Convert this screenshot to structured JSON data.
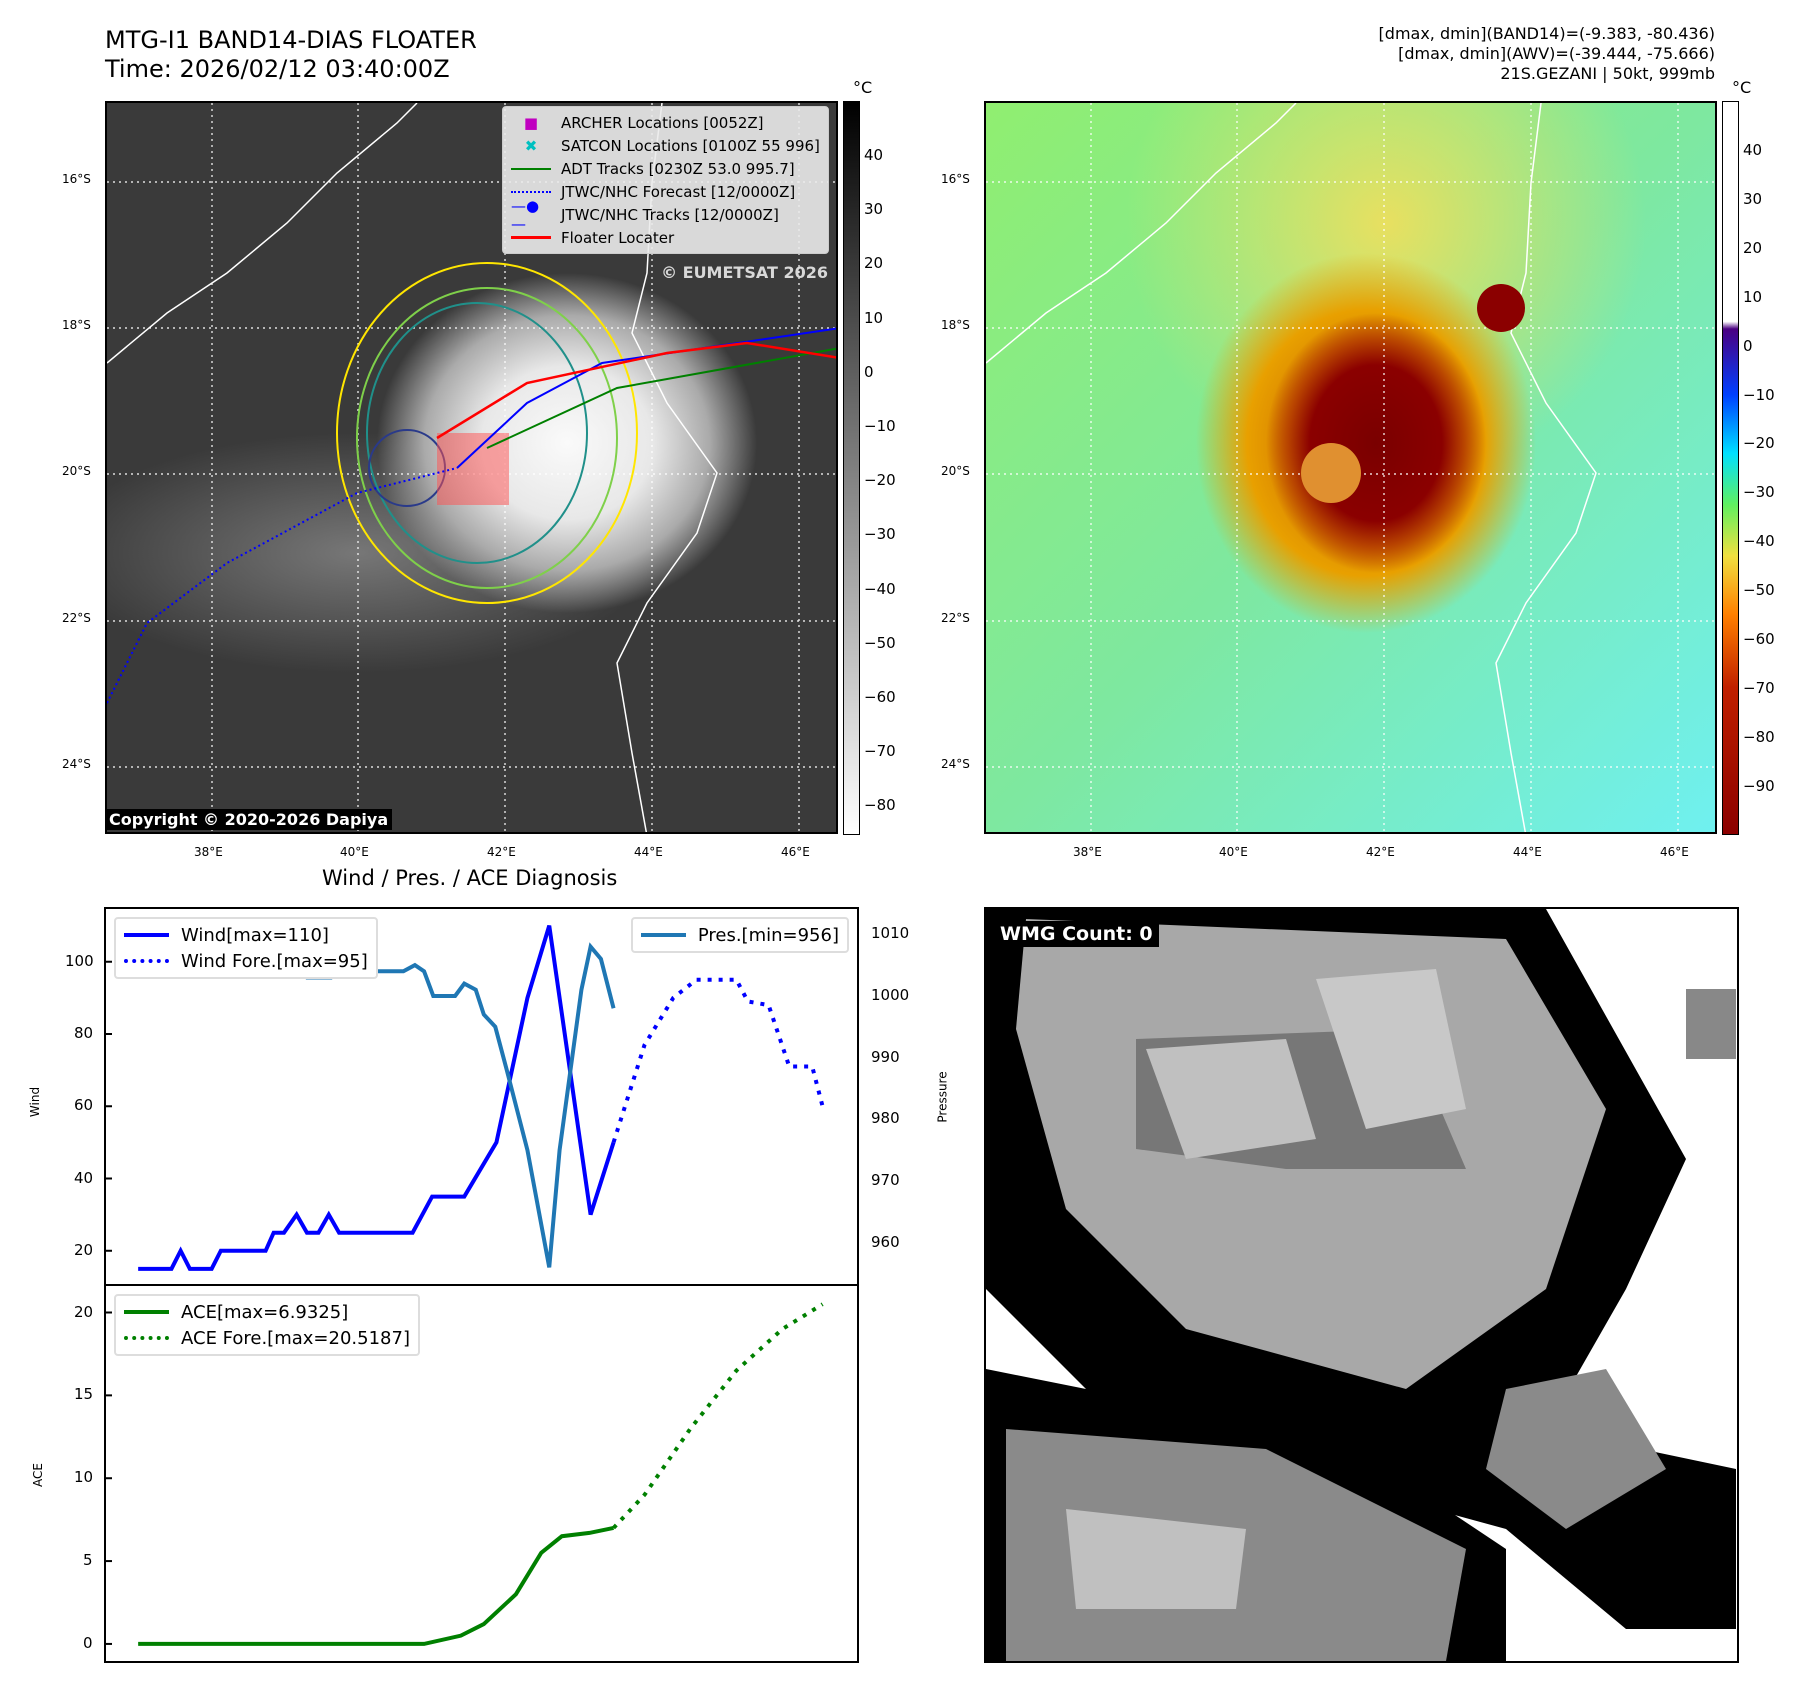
{
  "header": {
    "title": "MTG-I1 BAND14-DIAS FLOATER",
    "time": "Time: 2026/02/12 03:40:00Z",
    "stats1": "[dmax, dmin](BAND14)=(-9.383, -80.436)",
    "stats2": "[dmax, dmin](AWV)=(-39.444, -75.666)",
    "storm": "21S.GEZANI | 50kt, 999mb"
  },
  "map": {
    "lat_labels": [
      "16°S",
      "18°S",
      "20°S",
      "22°S",
      "24°S"
    ],
    "lon_labels": [
      "38°E",
      "40°E",
      "42°E",
      "44°E",
      "46°E"
    ],
    "watermark": "© EUMETSAT 2026",
    "copyright": "Copyright © 2020-2026 Dapiya",
    "legend": [
      "ARCHER Locations [0052Z]",
      "SATCON Locations [0100Z 55 996]",
      "ADT Tracks [0230Z 53.0 995.7]",
      "JTWC/NHC Forecast [12/0000Z]",
      "JTWC/NHC Tracks [12/0000Z]",
      "Floater Locater"
    ],
    "cbar1_unit": "°C",
    "cbar1_ticks": [
      "40",
      "30",
      "20",
      "10",
      "0",
      "−10",
      "−20",
      "−30",
      "−40",
      "−50",
      "−60",
      "−70",
      "−80"
    ],
    "cbar2_unit": "°C",
    "cbar2_ticks": [
      "40",
      "30",
      "20",
      "10",
      "0",
      "−10",
      "−20",
      "−30",
      "−40",
      "−50",
      "−60",
      "−70",
      "−80",
      "−90"
    ]
  },
  "wmg": {
    "label": "WMG Count: 0"
  },
  "chart_data": [
    {
      "type": "line",
      "title": "Wind / Pres. / ACE Diagnosis",
      "ylabel": "Wind",
      "y2label": "Pressure",
      "xlim": [
        -2.8,
        62.6
      ],
      "ylim": [
        10.8,
        114.6
      ],
      "y2lim": [
        953.3,
        1014.1
      ],
      "yticks": [
        20,
        40,
        60,
        80,
        100
      ],
      "y2ticks": [
        960,
        970,
        980,
        990,
        1000,
        1010
      ],
      "series": [
        {
          "name": "Wind[max=110]",
          "color": "#0000ff",
          "style": "solid",
          "x": [
            0,
            2.9,
            3.7,
            4.5,
            6.4,
            7.2,
            11.1,
            11.8,
            12.7,
            13.8,
            14.7,
            15.7,
            16.6,
            17.5,
            23.9,
            25.6,
            28.4,
            31.2,
            33.9,
            35.8,
            39.4,
            41.4
          ],
          "y": [
            15,
            15,
            20,
            15,
            15,
            20,
            20,
            25,
            25,
            30,
            25,
            25,
            30,
            25,
            25,
            35,
            35,
            50,
            90,
            110,
            30,
            50
          ]
        },
        {
          "name": "Wind Fore.[max=95]",
          "color": "#0000ff",
          "style": "dotted",
          "x": [
            41.4,
            44.1,
            46.6,
            48.6,
            52.1,
            53.1,
            54.9,
            56.7,
            58.7,
            59.6
          ],
          "y": [
            50,
            77,
            90,
            95,
            95,
            89,
            88,
            71,
            71,
            60
          ]
        },
        {
          "name": "Pres.[min=956]",
          "color": "#1f77b4",
          "style": "solid",
          "axis": "right",
          "x": [
            0,
            1.8,
            5.6,
            7.6,
            9.6,
            11.6,
            13.7,
            14.7,
            16.8,
            17.7,
            19.1,
            23.1,
            24.1,
            24.9,
            25.7,
            27.6,
            28.4,
            29.4,
            30.1,
            31.1,
            32.1,
            33.9,
            35.8,
            36.7,
            38.6,
            39.4,
            40.3,
            41.4
          ],
          "y": [
            1008,
            1010,
            1010,
            1006,
            1006,
            1005,
            1005,
            1003,
            1003,
            1005,
            1004,
            1004,
            1005,
            1004,
            1000,
            1000,
            1002,
            1001,
            997,
            995,
            988,
            975,
            956,
            975,
            1001,
            1008,
            1006,
            998
          ]
        }
      ]
    },
    {
      "type": "line",
      "ylabel": "ACE",
      "xlim": [
        -2.8,
        62.6
      ],
      "ylim": [
        -1.03,
        21.6
      ],
      "yticks": [
        0,
        5,
        10,
        15,
        20
      ],
      "series": [
        {
          "name": "ACE[max=6.9325]",
          "color": "#008000",
          "style": "solid",
          "x": [
            0,
            24.9,
            28.1,
            30.1,
            32.9,
            35.1,
            36.9,
            39.3,
            41.4
          ],
          "y": [
            0,
            0,
            0.5,
            1.2,
            3,
            5.5,
            6.5,
            6.7,
            7
          ]
        },
        {
          "name": "ACE Fore.[max=20.5187]",
          "color": "#008000",
          "style": "dotted",
          "x": [
            41.4,
            44.1,
            48.1,
            52.1,
            56.1,
            59.6
          ],
          "y": [
            7,
            9,
            13,
            16.5,
            19,
            20.5
          ]
        }
      ]
    }
  ]
}
